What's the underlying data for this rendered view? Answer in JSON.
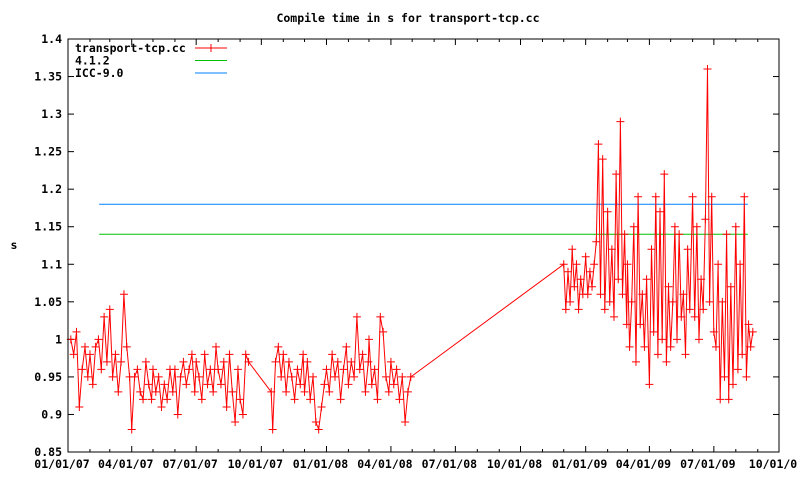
{
  "chart_data": {
    "type": "line",
    "title": "Compile time in s for transport-tcp.cc",
    "xlabel": "",
    "ylabel": "s",
    "xlim": [
      "2007-01-01",
      "2009-10-01"
    ],
    "ylim": [
      0.85,
      1.4
    ],
    "x_ticks": [
      "01/01/07",
      "04/01/07",
      "07/01/07",
      "10/01/07",
      "01/01/08",
      "04/01/08",
      "07/01/08",
      "10/01/08",
      "01/01/09",
      "04/01/09",
      "07/01/09",
      "10/01/0"
    ],
    "x_tick_dates": [
      "2007-01-01",
      "2007-04-01",
      "2007-07-01",
      "2007-10-01",
      "2008-01-01",
      "2008-04-01",
      "2008-07-01",
      "2008-10-01",
      "2009-01-01",
      "2009-04-01",
      "2009-07-01",
      "2009-10-01"
    ],
    "y_ticks": [
      "0.85",
      "0.9",
      "0.95",
      "1",
      "1.05",
      "1.1",
      "1.15",
      "1.2",
      "1.25",
      "1.3",
      "1.35",
      "1.4"
    ],
    "grid": false,
    "legend_position": "top-left",
    "series": [
      {
        "name": "transport-tcp.cc",
        "color": "#ff0000",
        "marker": "plus",
        "points": [
          [
            "2007-01-05",
            1.0
          ],
          [
            "2007-01-09",
            0.98
          ],
          [
            "2007-01-13",
            1.01
          ],
          [
            "2007-01-17",
            0.91
          ],
          [
            "2007-01-21",
            0.96
          ],
          [
            "2007-01-25",
            0.99
          ],
          [
            "2007-01-29",
            0.95
          ],
          [
            "2007-02-01",
            0.98
          ],
          [
            "2007-02-05",
            0.94
          ],
          [
            "2007-02-09",
            0.99
          ],
          [
            "2007-02-13",
            1.0
          ],
          [
            "2007-02-17",
            0.96
          ],
          [
            "2007-02-21",
            1.03
          ],
          [
            "2007-02-25",
            0.97
          ],
          [
            "2007-03-01",
            1.04
          ],
          [
            "2007-03-05",
            0.95
          ],
          [
            "2007-03-09",
            0.98
          ],
          [
            "2007-03-13",
            0.93
          ],
          [
            "2007-03-17",
            0.97
          ],
          [
            "2007-03-21",
            1.06
          ],
          [
            "2007-03-25",
            0.99
          ],
          [
            "2007-03-29",
            0.95
          ],
          [
            "2007-04-01",
            0.88
          ],
          [
            "2007-04-05",
            0.95
          ],
          [
            "2007-04-09",
            0.96
          ],
          [
            "2007-04-13",
            0.93
          ],
          [
            "2007-04-17",
            0.92
          ],
          [
            "2007-04-21",
            0.97
          ],
          [
            "2007-04-25",
            0.94
          ],
          [
            "2007-04-29",
            0.92
          ],
          [
            "2007-05-01",
            0.96
          ],
          [
            "2007-05-05",
            0.93
          ],
          [
            "2007-05-09",
            0.95
          ],
          [
            "2007-05-13",
            0.91
          ],
          [
            "2007-05-17",
            0.94
          ],
          [
            "2007-05-21",
            0.92
          ],
          [
            "2007-05-25",
            0.96
          ],
          [
            "2007-05-29",
            0.93
          ],
          [
            "2007-06-01",
            0.96
          ],
          [
            "2007-06-05",
            0.9
          ],
          [
            "2007-06-09",
            0.95
          ],
          [
            "2007-06-13",
            0.97
          ],
          [
            "2007-06-17",
            0.94
          ],
          [
            "2007-06-21",
            0.96
          ],
          [
            "2007-06-25",
            0.98
          ],
          [
            "2007-06-29",
            0.93
          ],
          [
            "2007-07-01",
            0.97
          ],
          [
            "2007-07-05",
            0.95
          ],
          [
            "2007-07-09",
            0.92
          ],
          [
            "2007-07-13",
            0.98
          ],
          [
            "2007-07-17",
            0.94
          ],
          [
            "2007-07-21",
            0.96
          ],
          [
            "2007-07-25",
            0.93
          ],
          [
            "2007-07-29",
            0.99
          ],
          [
            "2007-08-01",
            0.96
          ],
          [
            "2007-08-05",
            0.94
          ],
          [
            "2007-08-09",
            0.97
          ],
          [
            "2007-08-13",
            0.91
          ],
          [
            "2007-08-17",
            0.98
          ],
          [
            "2007-08-21",
            0.93
          ],
          [
            "2007-08-25",
            0.89
          ],
          [
            "2007-08-29",
            0.96
          ],
          [
            "2007-09-01",
            0.92
          ],
          [
            "2007-09-05",
            0.9
          ],
          [
            "2007-09-09",
            0.98
          ],
          [
            "2007-09-13",
            0.97
          ],
          [
            "2007-10-15",
            0.93
          ],
          [
            "2007-10-17",
            0.88
          ],
          [
            "2007-10-21",
            0.97
          ],
          [
            "2007-10-25",
            0.99
          ],
          [
            "2007-10-29",
            0.95
          ],
          [
            "2007-11-01",
            0.98
          ],
          [
            "2007-11-05",
            0.93
          ],
          [
            "2007-11-09",
            0.97
          ],
          [
            "2007-11-13",
            0.95
          ],
          [
            "2007-11-17",
            0.92
          ],
          [
            "2007-11-21",
            0.96
          ],
          [
            "2007-11-25",
            0.94
          ],
          [
            "2007-11-29",
            0.98
          ],
          [
            "2007-12-01",
            0.93
          ],
          [
            "2007-12-05",
            0.97
          ],
          [
            "2007-12-09",
            0.92
          ],
          [
            "2007-12-13",
            0.95
          ],
          [
            "2007-12-17",
            0.89
          ],
          [
            "2007-12-21",
            0.88
          ],
          [
            "2007-12-25",
            0.91
          ],
          [
            "2007-12-29",
            0.94
          ],
          [
            "2008-01-01",
            0.96
          ],
          [
            "2008-01-05",
            0.93
          ],
          [
            "2008-01-09",
            0.98
          ],
          [
            "2008-01-13",
            0.95
          ],
          [
            "2008-01-17",
            0.97
          ],
          [
            "2008-01-21",
            0.92
          ],
          [
            "2008-01-25",
            0.96
          ],
          [
            "2008-01-29",
            0.99
          ],
          [
            "2008-02-01",
            0.94
          ],
          [
            "2008-02-05",
            0.97
          ],
          [
            "2008-02-09",
            0.95
          ],
          [
            "2008-02-13",
            1.03
          ],
          [
            "2008-02-17",
            0.96
          ],
          [
            "2008-02-21",
            0.98
          ],
          [
            "2008-02-25",
            0.93
          ],
          [
            "2008-02-29",
            0.97
          ],
          [
            "2008-03-01",
            1.0
          ],
          [
            "2008-03-05",
            0.94
          ],
          [
            "2008-03-09",
            0.96
          ],
          [
            "2008-03-13",
            0.92
          ],
          [
            "2008-03-17",
            1.03
          ],
          [
            "2008-03-21",
            1.01
          ],
          [
            "2008-03-25",
            0.95
          ],
          [
            "2008-03-29",
            0.93
          ],
          [
            "2008-04-01",
            0.97
          ],
          [
            "2008-04-05",
            0.94
          ],
          [
            "2008-04-09",
            0.96
          ],
          [
            "2008-04-13",
            0.92
          ],
          [
            "2008-04-17",
            0.95
          ],
          [
            "2008-04-21",
            0.89
          ],
          [
            "2008-04-25",
            0.93
          ],
          [
            "2008-04-29",
            0.95
          ],
          [
            "2008-12-01",
            1.1
          ],
          [
            "2008-12-04",
            1.04
          ],
          [
            "2008-12-07",
            1.09
          ],
          [
            "2008-12-10",
            1.05
          ],
          [
            "2008-12-13",
            1.12
          ],
          [
            "2008-12-16",
            1.07
          ],
          [
            "2008-12-19",
            1.1
          ],
          [
            "2008-12-22",
            1.04
          ],
          [
            "2008-12-25",
            1.08
          ],
          [
            "2008-12-28",
            1.06
          ],
          [
            "2009-01-01",
            1.11
          ],
          [
            "2009-01-04",
            1.06
          ],
          [
            "2009-01-07",
            1.09
          ],
          [
            "2009-01-10",
            1.07
          ],
          [
            "2009-01-13",
            1.1
          ],
          [
            "2009-01-16",
            1.13
          ],
          [
            "2009-01-19",
            1.26
          ],
          [
            "2009-01-22",
            1.06
          ],
          [
            "2009-01-25",
            1.24
          ],
          [
            "2009-01-28",
            1.04
          ],
          [
            "2009-02-01",
            1.17
          ],
          [
            "2009-02-04",
            1.05
          ],
          [
            "2009-02-07",
            1.12
          ],
          [
            "2009-02-10",
            1.03
          ],
          [
            "2009-02-13",
            1.22
          ],
          [
            "2009-02-16",
            1.08
          ],
          [
            "2009-02-19",
            1.29
          ],
          [
            "2009-02-22",
            1.06
          ],
          [
            "2009-02-25",
            1.14
          ],
          [
            "2009-02-28",
            1.02
          ],
          [
            "2009-03-01",
            1.1
          ],
          [
            "2009-03-04",
            0.99
          ],
          [
            "2009-03-07",
            1.05
          ],
          [
            "2009-03-10",
            1.15
          ],
          [
            "2009-03-13",
            0.97
          ],
          [
            "2009-03-16",
            1.19
          ],
          [
            "2009-03-19",
            1.02
          ],
          [
            "2009-03-22",
            1.06
          ],
          [
            "2009-03-25",
            0.99
          ],
          [
            "2009-03-28",
            1.08
          ],
          [
            "2009-04-01",
            0.94
          ],
          [
            "2009-04-04",
            1.12
          ],
          [
            "2009-04-07",
            1.01
          ],
          [
            "2009-04-10",
            1.19
          ],
          [
            "2009-04-13",
            0.98
          ],
          [
            "2009-04-16",
            1.17
          ],
          [
            "2009-04-19",
            1.0
          ],
          [
            "2009-04-22",
            1.22
          ],
          [
            "2009-04-25",
            0.97
          ],
          [
            "2009-04-28",
            1.07
          ],
          [
            "2009-05-01",
            0.99
          ],
          [
            "2009-05-04",
            1.05
          ],
          [
            "2009-05-07",
            1.15
          ],
          [
            "2009-05-10",
            1.0
          ],
          [
            "2009-05-13",
            1.14
          ],
          [
            "2009-05-16",
            1.03
          ],
          [
            "2009-05-19",
            1.06
          ],
          [
            "2009-05-22",
            0.98
          ],
          [
            "2009-05-25",
            1.12
          ],
          [
            "2009-05-28",
            1.04
          ],
          [
            "2009-06-01",
            1.19
          ],
          [
            "2009-06-04",
            1.03
          ],
          [
            "2009-06-07",
            1.15
          ],
          [
            "2009-06-10",
            1.0
          ],
          [
            "2009-06-13",
            1.08
          ],
          [
            "2009-06-16",
            1.04
          ],
          [
            "2009-06-19",
            1.16
          ],
          [
            "2009-06-22",
            1.36
          ],
          [
            "2009-06-25",
            1.05
          ],
          [
            "2009-06-28",
            1.19
          ],
          [
            "2009-07-01",
            1.01
          ],
          [
            "2009-07-04",
            0.99
          ],
          [
            "2009-07-07",
            1.1
          ],
          [
            "2009-07-10",
            0.92
          ],
          [
            "2009-07-13",
            1.05
          ],
          [
            "2009-07-16",
            0.95
          ],
          [
            "2009-07-19",
            1.14
          ],
          [
            "2009-07-22",
            0.92
          ],
          [
            "2009-07-25",
            1.07
          ],
          [
            "2009-07-28",
            0.94
          ],
          [
            "2009-08-01",
            1.15
          ],
          [
            "2009-08-04",
            0.96
          ],
          [
            "2009-08-07",
            1.1
          ],
          [
            "2009-08-10",
            0.98
          ],
          [
            "2009-08-13",
            1.19
          ],
          [
            "2009-08-16",
            0.95
          ],
          [
            "2009-08-19",
            1.02
          ],
          [
            "2009-08-22",
            0.99
          ],
          [
            "2009-08-25",
            1.01
          ]
        ]
      },
      {
        "name": "4.1.2",
        "color": "#00c000",
        "marker": "none",
        "points": [
          [
            "2007-02-14",
            1.14
          ],
          [
            "2009-08-18",
            1.14
          ]
        ]
      },
      {
        "name": "ICC-9.0",
        "color": "#0080ff",
        "marker": "none",
        "points": [
          [
            "2007-02-14",
            1.18
          ],
          [
            "2009-08-18",
            1.18
          ]
        ]
      }
    ]
  }
}
